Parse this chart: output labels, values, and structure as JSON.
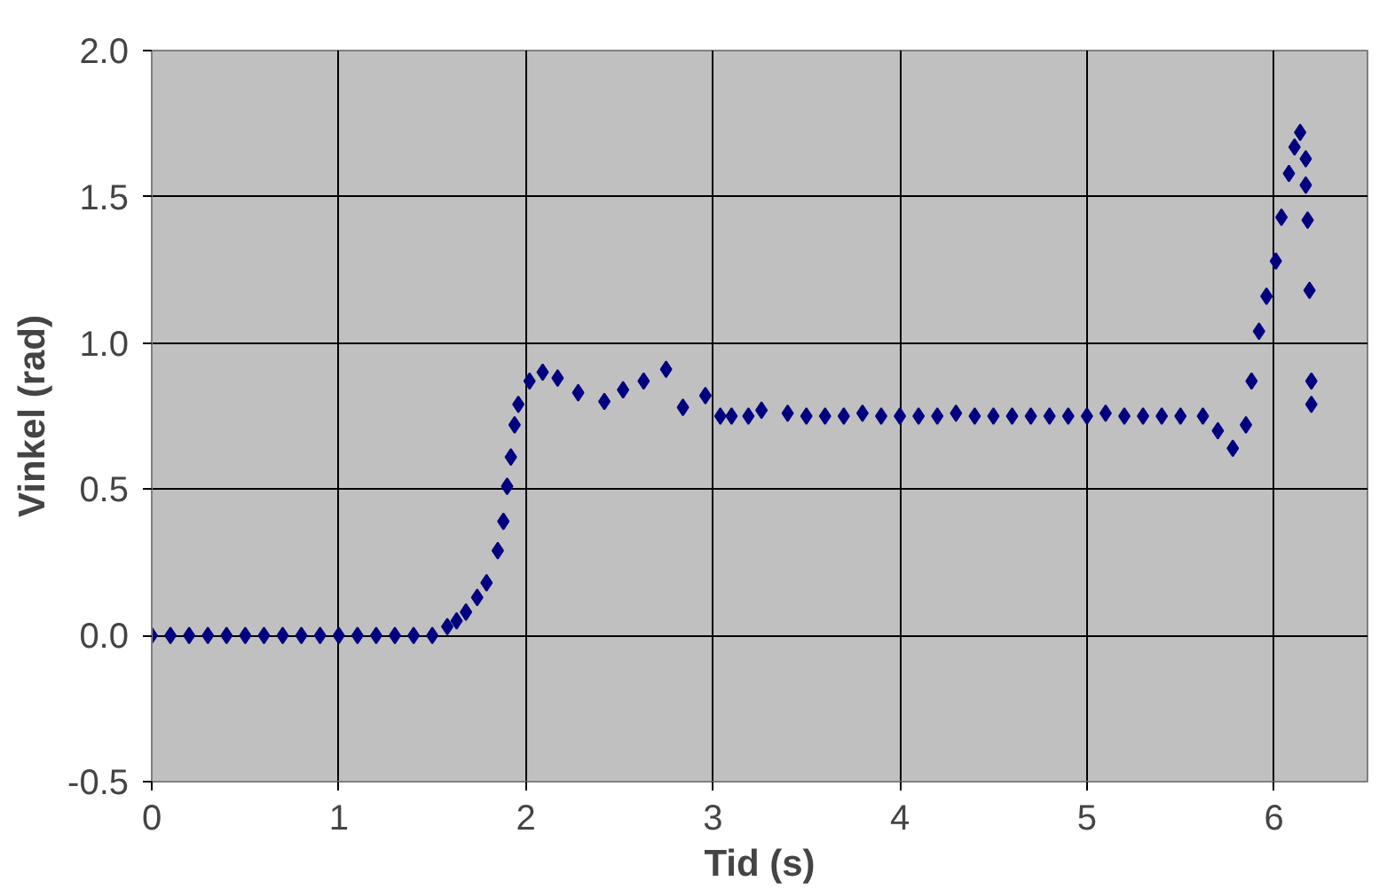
{
  "chart_data": {
    "type": "scatter",
    "xlabel": "Tid (s)",
    "ylabel": "Vinkel (rad)",
    "xlim": [
      0,
      6.5
    ],
    "ylim": [
      -0.5,
      2.0
    ],
    "xticks": [
      0,
      1,
      2,
      3,
      4,
      5,
      6
    ],
    "yticks": [
      {
        "value": -0.5,
        "label": "-0.5"
      },
      {
        "value": 0,
        "label": "0.0"
      },
      {
        "value": 0.5,
        "label": "0.5"
      },
      {
        "value": 1,
        "label": "1.0"
      },
      {
        "value": 1.5,
        "label": "1.5"
      },
      {
        "value": 2,
        "label": "2.0"
      }
    ],
    "grid": true,
    "marker": "diamond",
    "series": [
      {
        "color": "#000080",
        "x": [
          0,
          0.1,
          0.2,
          0.3,
          0.4,
          0.5,
          0.6,
          0.7,
          0.8,
          0.9,
          1.0,
          1.1,
          1.2,
          1.3,
          1.4,
          1.5,
          1.58,
          1.63,
          1.68,
          1.74,
          1.79,
          1.85,
          1.88,
          1.9,
          1.92,
          1.94,
          1.96,
          2.02,
          2.09,
          2.17,
          2.28,
          2.42,
          2.52,
          2.63,
          2.75,
          2.84,
          2.96,
          3.04,
          3.1,
          3.19,
          3.26,
          3.4,
          3.5,
          3.6,
          3.7,
          3.8,
          3.9,
          4.0,
          4.1,
          4.2,
          4.3,
          4.4,
          4.5,
          4.6,
          4.7,
          4.8,
          4.9,
          5.0,
          5.1,
          5.2,
          5.3,
          5.4,
          5.5,
          5.62,
          5.7,
          5.78,
          5.85,
          5.88,
          5.92,
          5.96,
          6.01,
          6.04,
          6.08,
          6.11,
          6.14,
          6.17,
          6.17,
          6.18,
          6.19,
          6.2,
          6.2
        ],
        "values": [
          0,
          0,
          0,
          0,
          0,
          0,
          0,
          0,
          0,
          0,
          0,
          0,
          0,
          0,
          0,
          0,
          0.03,
          0.05,
          0.08,
          0.13,
          0.18,
          0.29,
          0.39,
          0.51,
          0.61,
          0.72,
          0.79,
          0.87,
          0.9,
          0.88,
          0.83,
          0.8,
          0.84,
          0.87,
          0.91,
          0.78,
          0.82,
          0.75,
          0.75,
          0.75,
          0.77,
          0.76,
          0.75,
          0.75,
          0.75,
          0.76,
          0.75,
          0.75,
          0.75,
          0.75,
          0.76,
          0.75,
          0.75,
          0.75,
          0.75,
          0.75,
          0.75,
          0.75,
          0.76,
          0.75,
          0.75,
          0.75,
          0.75,
          0.75,
          0.7,
          0.64,
          0.72,
          0.87,
          1.04,
          1.16,
          1.28,
          1.43,
          1.58,
          1.67,
          1.72,
          1.63,
          1.54,
          1.42,
          1.18,
          0.87,
          0.79
        ]
      }
    ]
  }
}
